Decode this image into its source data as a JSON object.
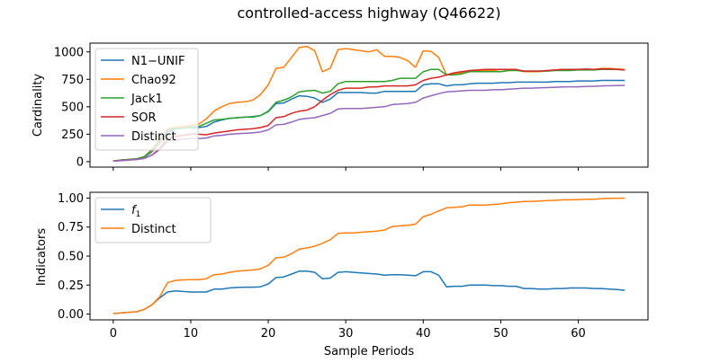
{
  "colors": {
    "blue": "#1f77b4",
    "orange": "#ff7f0e",
    "green": "#2ca02c",
    "red": "#d62728",
    "purple": "#9467bd"
  },
  "chart_data": [
    {
      "type": "line",
      "title": "controlled-access highway (Q46622)",
      "xlabel": "",
      "ylabel": "Cardinality",
      "xlim": [
        -3,
        69
      ],
      "ylim": [
        -50,
        1080
      ],
      "xticks": [
        0,
        10,
        20,
        30,
        40,
        50,
        60
      ],
      "yticks": [
        0,
        250,
        500,
        750,
        1000
      ],
      "x_tick_labels_visible": false,
      "legend": "top-left",
      "x": [
        0,
        1,
        2,
        3,
        4,
        5,
        6,
        7,
        8,
        9,
        10,
        11,
        12,
        13,
        14,
        15,
        16,
        17,
        18,
        19,
        20,
        21,
        22,
        23,
        24,
        25,
        26,
        27,
        28,
        29,
        30,
        31,
        32,
        33,
        34,
        35,
        36,
        37,
        38,
        39,
        40,
        41,
        42,
        43,
        44,
        45,
        46,
        47,
        48,
        49,
        50,
        51,
        52,
        53,
        54,
        55,
        56,
        57,
        58,
        59,
        60,
        61,
        62,
        63,
        64,
        65,
        66
      ],
      "series": [
        {
          "name": "N1−UNIF",
          "color": "#1f77b4",
          "values": [
            5,
            15,
            20,
            25,
            40,
            90,
            170,
            270,
            300,
            305,
            310,
            310,
            320,
            360,
            380,
            395,
            400,
            405,
            410,
            420,
            455,
            530,
            535,
            570,
            600,
            595,
            580,
            540,
            570,
            630,
            630,
            630,
            630,
            625,
            625,
            640,
            640,
            640,
            640,
            640,
            700,
            710,
            710,
            690,
            700,
            700,
            710,
            715,
            715,
            715,
            720,
            720,
            725,
            725,
            725,
            725,
            725,
            730,
            730,
            730,
            735,
            735,
            735,
            740,
            740,
            740,
            740
          ]
        },
        {
          "name": "Chao92",
          "color": "#ff7f0e",
          "values": [
            5,
            15,
            20,
            25,
            45,
            100,
            180,
            300,
            310,
            320,
            330,
            340,
            390,
            460,
            500,
            530,
            540,
            545,
            560,
            610,
            700,
            850,
            860,
            950,
            1040,
            1050,
            1010,
            820,
            850,
            1020,
            1030,
            1020,
            1010,
            1000,
            1020,
            960,
            960,
            950,
            920,
            860,
            1010,
            1005,
            950,
            790,
            800,
            810,
            830,
            830,
            830,
            830,
            820,
            830,
            835,
            820,
            820,
            820,
            830,
            835,
            840,
            840,
            840,
            840,
            840,
            850,
            850,
            845,
            840
          ]
        },
        {
          "name": "Jack1",
          "color": "#2ca02c",
          "values": [
            5,
            15,
            20,
            25,
            45,
            110,
            200,
            290,
            300,
            305,
            315,
            320,
            350,
            380,
            385,
            395,
            400,
            405,
            405,
            420,
            460,
            540,
            560,
            590,
            635,
            645,
            650,
            625,
            640,
            710,
            730,
            730,
            730,
            730,
            730,
            730,
            740,
            760,
            760,
            760,
            820,
            840,
            840,
            790,
            790,
            800,
            820,
            820,
            820,
            820,
            820,
            830,
            830,
            825,
            825,
            825,
            825,
            830,
            830,
            830,
            835,
            835,
            835,
            840,
            840,
            840,
            835
          ]
        },
        {
          "name": "SOR",
          "color": "#d62728",
          "values": [
            5,
            10,
            15,
            20,
            30,
            60,
            120,
            210,
            230,
            240,
            250,
            250,
            245,
            260,
            270,
            280,
            290,
            295,
            300,
            310,
            330,
            400,
            410,
            440,
            460,
            470,
            500,
            560,
            610,
            650,
            670,
            670,
            670,
            680,
            680,
            690,
            690,
            690,
            690,
            700,
            740,
            760,
            770,
            790,
            810,
            820,
            830,
            835,
            840,
            840,
            840,
            840,
            840,
            825,
            825,
            825,
            830,
            835,
            840,
            840,
            840,
            845,
            840,
            845,
            845,
            840,
            835
          ]
        },
        {
          "name": "Distinct",
          "color": "#9467bd",
          "values": [
            5,
            10,
            15,
            20,
            30,
            60,
            110,
            185,
            195,
            205,
            210,
            210,
            215,
            235,
            240,
            250,
            255,
            258,
            262,
            270,
            290,
            335,
            340,
            360,
            385,
            395,
            400,
            420,
            440,
            480,
            485,
            485,
            485,
            490,
            495,
            500,
            520,
            525,
            530,
            540,
            580,
            600,
            620,
            635,
            640,
            645,
            650,
            650,
            650,
            655,
            655,
            660,
            665,
            670,
            670,
            672,
            675,
            678,
            680,
            682,
            682,
            685,
            687,
            690,
            692,
            693,
            695
          ]
        }
      ]
    },
    {
      "type": "line",
      "title": "",
      "xlabel": "Sample Periods",
      "ylabel": "Indicators",
      "xlim": [
        -3,
        69
      ],
      "ylim": [
        -0.05,
        1.05
      ],
      "xticks": [
        0,
        10,
        20,
        30,
        40,
        50,
        60
      ],
      "yticks": [
        "0.00",
        "0.25",
        "0.50",
        "0.75",
        "1.00"
      ],
      "legend": "top-left",
      "x": [
        0,
        1,
        2,
        3,
        4,
        5,
        6,
        7,
        8,
        9,
        10,
        11,
        12,
        13,
        14,
        15,
        16,
        17,
        18,
        19,
        20,
        21,
        22,
        23,
        24,
        25,
        26,
        27,
        28,
        29,
        30,
        31,
        32,
        33,
        34,
        35,
        36,
        37,
        38,
        39,
        40,
        41,
        42,
        43,
        44,
        45,
        46,
        47,
        48,
        49,
        50,
        51,
        52,
        53,
        54,
        55,
        56,
        57,
        58,
        59,
        60,
        61,
        62,
        63,
        64,
        65,
        66
      ],
      "series": [
        {
          "name": "f1",
          "legend_label": "f",
          "legend_sub": "1",
          "color": "#1f77b4",
          "values": [
            0.005,
            0.01,
            0.015,
            0.02,
            0.04,
            0.08,
            0.14,
            0.19,
            0.2,
            0.195,
            0.19,
            0.19,
            0.19,
            0.215,
            0.215,
            0.225,
            0.23,
            0.232,
            0.232,
            0.235,
            0.26,
            0.315,
            0.32,
            0.345,
            0.37,
            0.37,
            0.36,
            0.305,
            0.31,
            0.36,
            0.365,
            0.36,
            0.355,
            0.35,
            0.345,
            0.335,
            0.34,
            0.34,
            0.335,
            0.33,
            0.365,
            0.365,
            0.335,
            0.235,
            0.24,
            0.24,
            0.25,
            0.25,
            0.25,
            0.245,
            0.245,
            0.24,
            0.24,
            0.22,
            0.22,
            0.215,
            0.215,
            0.22,
            0.22,
            0.225,
            0.225,
            0.225,
            0.22,
            0.22,
            0.215,
            0.212,
            0.205
          ]
        },
        {
          "name": "Distinct",
          "color": "#ff7f0e",
          "values": [
            0.005,
            0.01,
            0.015,
            0.02,
            0.04,
            0.08,
            0.15,
            0.27,
            0.29,
            0.295,
            0.297,
            0.297,
            0.305,
            0.34,
            0.345,
            0.36,
            0.37,
            0.375,
            0.38,
            0.39,
            0.42,
            0.485,
            0.49,
            0.52,
            0.56,
            0.57,
            0.585,
            0.61,
            0.64,
            0.695,
            0.7,
            0.7,
            0.705,
            0.71,
            0.715,
            0.725,
            0.755,
            0.76,
            0.765,
            0.775,
            0.84,
            0.86,
            0.89,
            0.915,
            0.92,
            0.925,
            0.94,
            0.94,
            0.94,
            0.945,
            0.95,
            0.96,
            0.965,
            0.97,
            0.972,
            0.975,
            0.978,
            0.98,
            0.985,
            0.985,
            0.987,
            0.99,
            0.99,
            0.995,
            0.997,
            0.999,
            1.0
          ]
        }
      ]
    }
  ]
}
